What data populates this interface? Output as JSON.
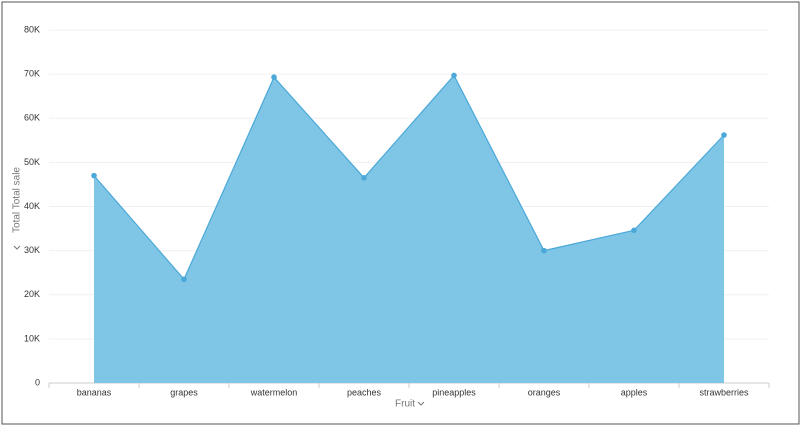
{
  "chart_data": {
    "type": "area",
    "categories": [
      "bananas",
      "grapes",
      "watermelon",
      "peaches",
      "pineapples",
      "oranges",
      "apples",
      "strawberries"
    ],
    "values": [
      47000,
      23500,
      69300,
      46500,
      69700,
      30000,
      34600,
      56200
    ],
    "color": "#7fc6e6",
    "line_color": "#4ba8d8",
    "ylim": [
      0,
      80000
    ],
    "yticks": [
      0,
      {
        "value": 10000,
        "label": "10K"
      },
      {
        "value": 20000,
        "label": "20K"
      },
      {
        "value": 30000,
        "label": "30K"
      },
      {
        "value": 40000,
        "label": "40K"
      },
      {
        "value": 50000,
        "label": "50K"
      },
      {
        "value": 60000,
        "label": "60K"
      },
      {
        "value": 70000,
        "label": "70K"
      },
      {
        "value": 80000,
        "label": "80K"
      }
    ],
    "ylabel": "Total Total sale",
    "xlabel": "Fruit",
    "grid": true
  }
}
